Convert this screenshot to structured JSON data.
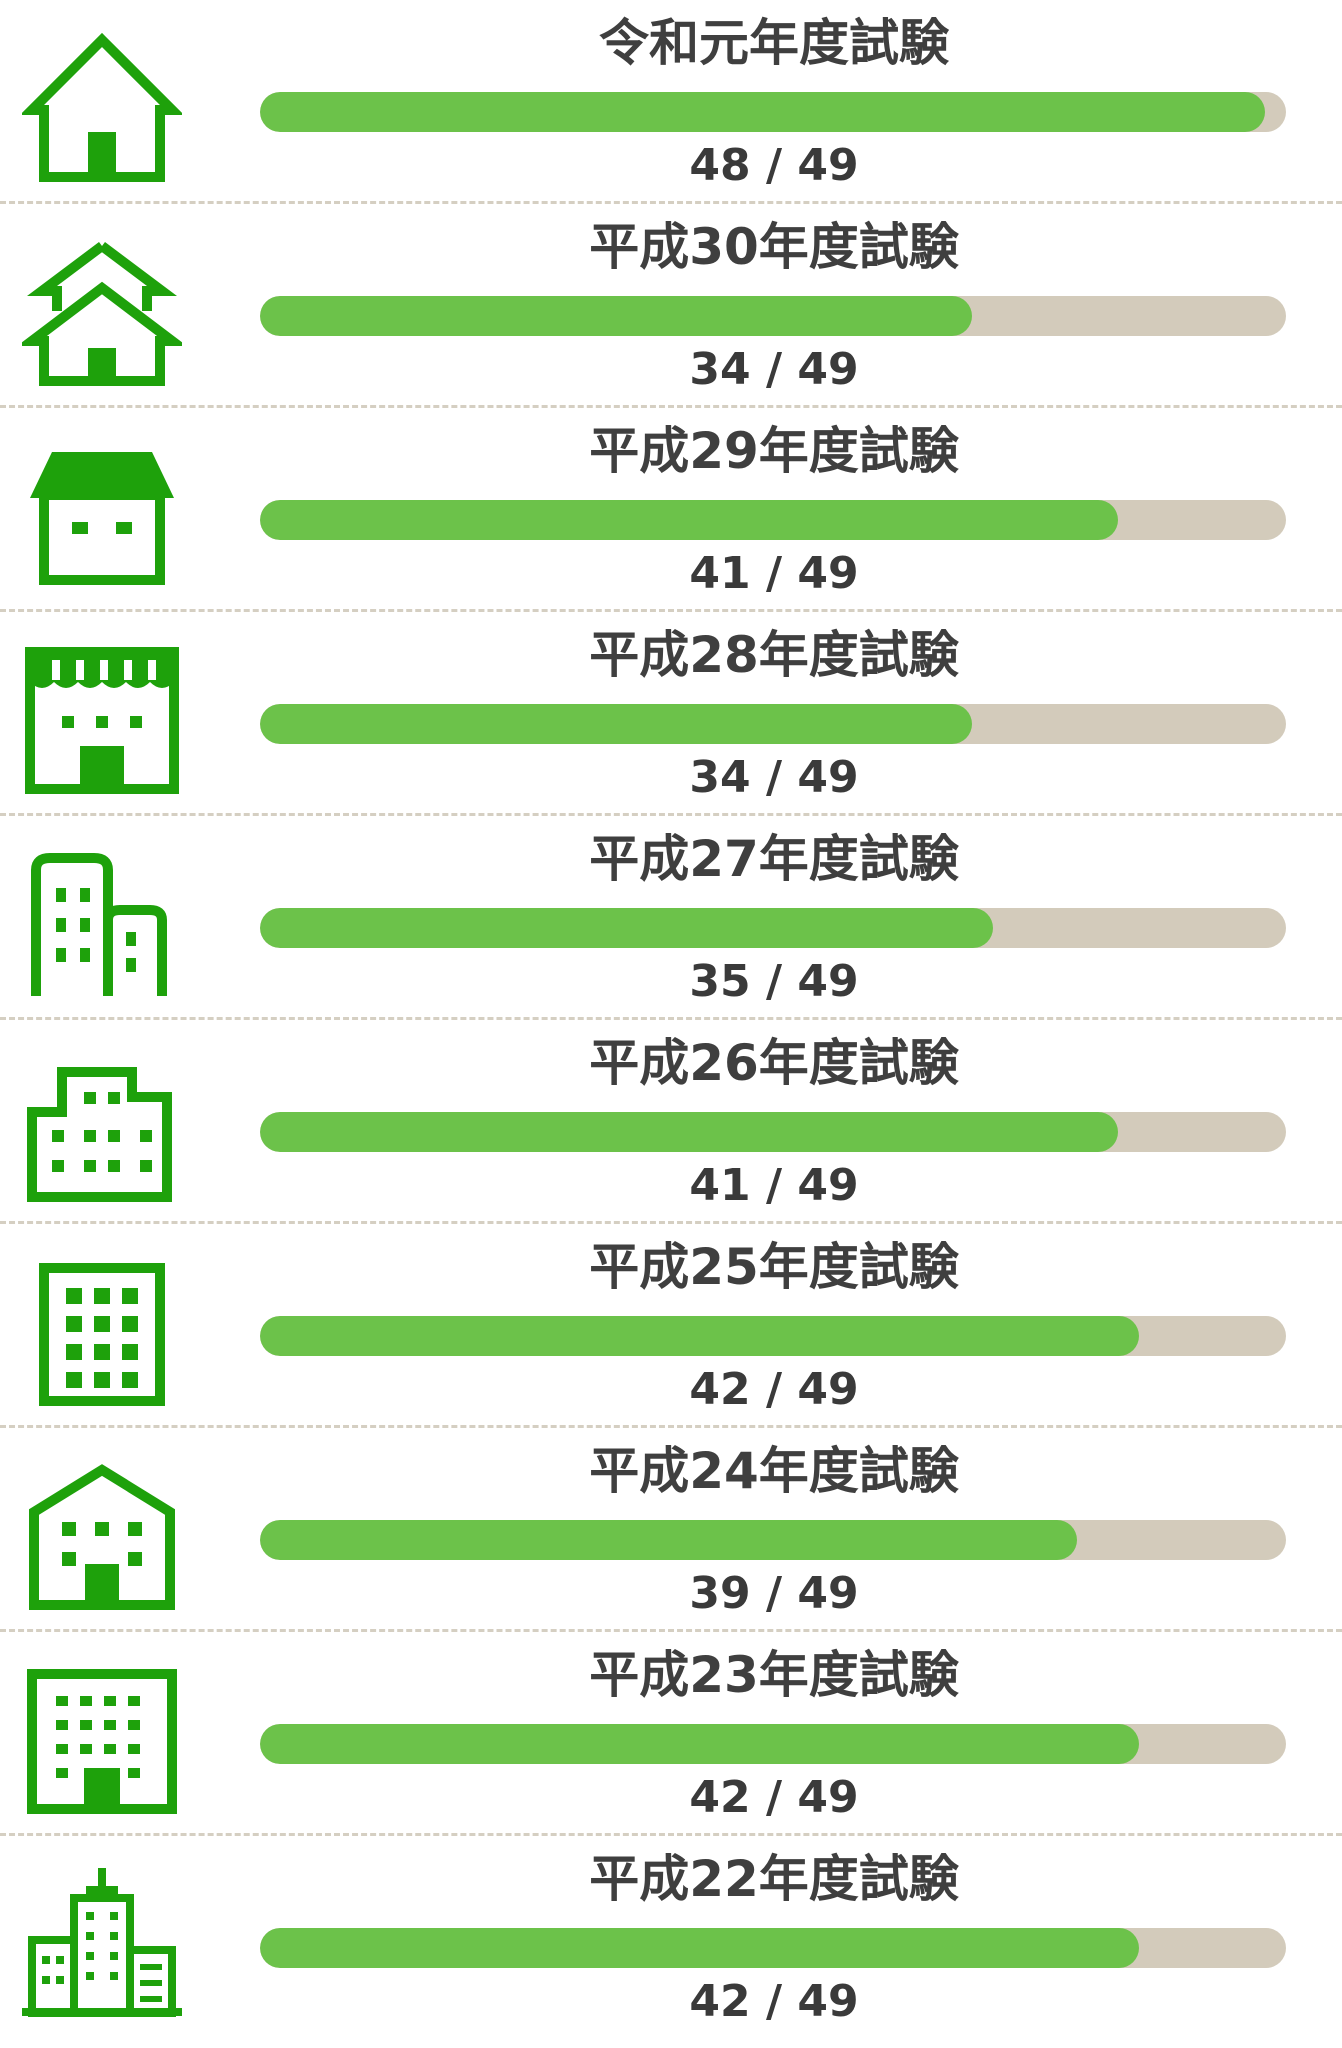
{
  "accent_color": "#6cc24a",
  "track_color": "#d3cbbb",
  "icon_color": "#1ea10b",
  "rows": [
    {
      "title": "令和元年度試験",
      "score": "48 / 49",
      "correct": 48,
      "total": 49,
      "icon": "house-icon"
    },
    {
      "title": "平成30年度試験",
      "score": "34 / 49",
      "correct": 34,
      "total": 49,
      "icon": "two-story-house-icon"
    },
    {
      "title": "平成29年度試験",
      "score": "41 / 49",
      "correct": 41,
      "total": 49,
      "icon": "shop-house-icon"
    },
    {
      "title": "平成28年度試験",
      "score": "34 / 49",
      "correct": 34,
      "total": 49,
      "icon": "store-awning-icon"
    },
    {
      "title": "平成27年度試験",
      "score": "35 / 49",
      "correct": 35,
      "total": 49,
      "icon": "twin-buildings-icon"
    },
    {
      "title": "平成26年度試験",
      "score": "41 / 49",
      "correct": 41,
      "total": 49,
      "icon": "stepped-building-icon"
    },
    {
      "title": "平成25年度試験",
      "score": "42 / 49",
      "correct": 42,
      "total": 49,
      "icon": "apartment-icon"
    },
    {
      "title": "平成24年度試験",
      "score": "39 / 49",
      "correct": 39,
      "total": 49,
      "icon": "gabled-building-icon"
    },
    {
      "title": "平成23年度試験",
      "score": "42 / 49",
      "correct": 42,
      "total": 49,
      "icon": "office-building-icon"
    },
    {
      "title": "平成22年度試験",
      "score": "42 / 49",
      "correct": 42,
      "total": 49,
      "icon": "skyscraper-icon"
    }
  ]
}
